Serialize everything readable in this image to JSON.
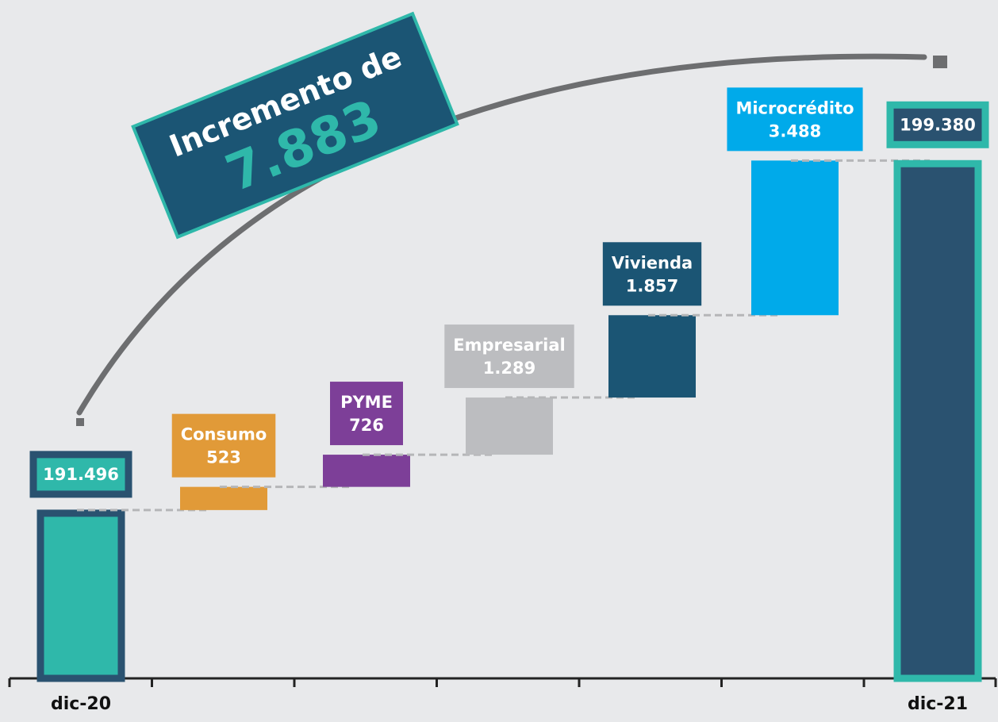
{
  "chart_data": {
    "type": "waterfall",
    "annotation": [
      "Incremento de",
      "7.883"
    ],
    "categories": [
      "dic-20",
      null,
      null,
      null,
      null,
      null,
      "dic-21"
    ],
    "bar_labels": [
      null,
      "Consumo",
      "PYME",
      "Empresarial",
      "Vivienda",
      "Microcrédito",
      null
    ],
    "values": [
      191496,
      523,
      726,
      1289,
      1857,
      3488,
      199380
    ],
    "value_labels": [
      "191.496",
      "523",
      "726",
      "1.289",
      "1.857",
      "3.488",
      "199.380"
    ],
    "measures": [
      "total",
      "relative",
      "relative",
      "relative",
      "relative",
      "relative",
      "total"
    ],
    "colors": [
      "#2fb8aa",
      "#e19a38",
      "#7d3f98",
      "#bcbdc0",
      "#1b5574",
      "#00aaea",
      "#2a5270"
    ],
    "ylim": [
      187700,
      203000
    ]
  }
}
